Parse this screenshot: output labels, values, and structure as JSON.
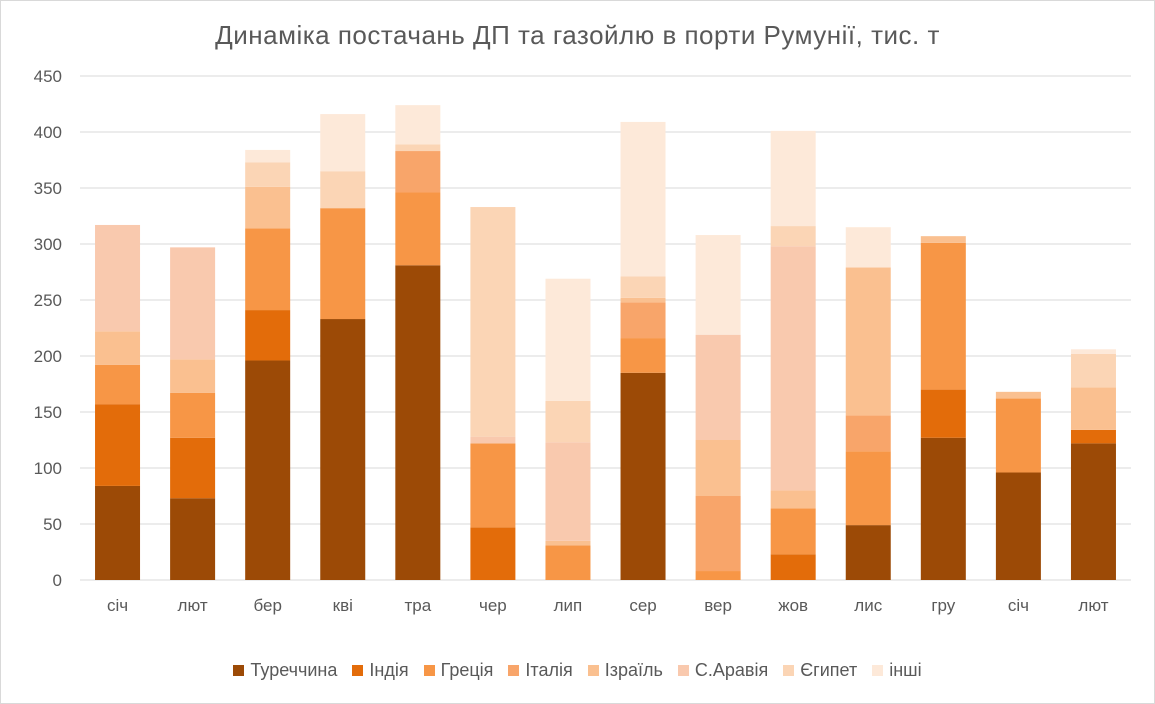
{
  "chart_data": {
    "type": "bar",
    "stacked": true,
    "title": "Динаміка постачань ДП та газойлю в порти Румунії, тис. т",
    "categories": [
      "січ",
      "лют",
      "бер",
      "кві",
      "тра",
      "чер",
      "лип",
      "сер",
      "вер",
      "жов",
      "лис",
      "гру",
      "січ",
      "лют"
    ],
    "ylim": [
      0,
      450
    ],
    "yticks": [
      0,
      50,
      100,
      150,
      200,
      250,
      300,
      350,
      400,
      450
    ],
    "grid": true,
    "legend_position": "bottom",
    "series": [
      {
        "name": "Туреччина",
        "color": "#9c4a06",
        "values": [
          84,
          73,
          196,
          233,
          281,
          0,
          0,
          185,
          0,
          0,
          49,
          127,
          96,
          122
        ]
      },
      {
        "name": "Індія",
        "color": "#e36c0a",
        "values": [
          73,
          54,
          45,
          0,
          0,
          47,
          0,
          0,
          0,
          23,
          0,
          43,
          0,
          12
        ]
      },
      {
        "name": "Греція",
        "color": "#f79646",
        "values": [
          35,
          40,
          73,
          99,
          65,
          75,
          31,
          31,
          8,
          41,
          66,
          131,
          66,
          0
        ]
      },
      {
        "name": "Італія",
        "color": "#f8a56a",
        "values": [
          0,
          0,
          0,
          0,
          37,
          0,
          0,
          32,
          67,
          0,
          32,
          0,
          0,
          0
        ]
      },
      {
        "name": "Ізраїль",
        "color": "#fac090",
        "values": [
          30,
          30,
          37,
          0,
          0,
          0,
          4,
          4,
          50,
          16,
          132,
          6,
          6,
          38
        ]
      },
      {
        "name": "С.Аравія",
        "color": "#f9c9ae",
        "values": [
          95,
          100,
          0,
          0,
          0,
          6,
          88,
          0,
          94,
          218,
          0,
          0,
          0,
          0
        ]
      },
      {
        "name": "Єгипет",
        "color": "#fbd5b5",
        "values": [
          0,
          0,
          22,
          33,
          6,
          205,
          37,
          19,
          0,
          18,
          0,
          0,
          0,
          30
        ]
      },
      {
        "name": "інші",
        "color": "#fde9d9",
        "values": [
          0,
          0,
          11,
          51,
          35,
          0,
          109,
          138,
          89,
          85,
          36,
          0,
          0,
          4
        ]
      }
    ]
  }
}
